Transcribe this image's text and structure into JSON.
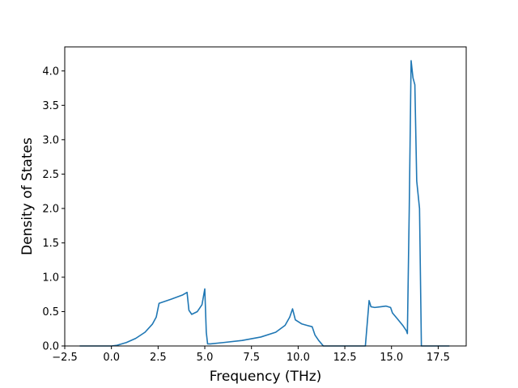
{
  "chart_data": {
    "type": "line",
    "title": "",
    "xlabel": "Frequency (THz)",
    "ylabel": "Density of States",
    "xlim": [
      -2.5,
      19.0
    ],
    "ylim": [
      0.0,
      4.35
    ],
    "xticks": [
      -2.5,
      0.0,
      2.5,
      5.0,
      7.5,
      10.0,
      12.5,
      15.0,
      17.5
    ],
    "xtick_labels": [
      "−2.5",
      "0.0",
      "2.5",
      "5.0",
      "7.5",
      "10.0",
      "12.5",
      "15.0",
      "17.5"
    ],
    "yticks": [
      0.0,
      0.5,
      1.0,
      1.5,
      2.0,
      2.5,
      3.0,
      3.5,
      4.0
    ],
    "ytick_labels": [
      "0.0",
      "0.5",
      "1.0",
      "1.5",
      "2.0",
      "2.5",
      "3.0",
      "3.5",
      "4.0"
    ],
    "grid": false,
    "line_color": "#1f77b4",
    "series": [
      {
        "x": [
          -1.7,
          0.0,
          0.3,
          0.8,
          1.3,
          1.8,
          2.2,
          2.4,
          2.55,
          3.2,
          3.8,
          4.05,
          4.15,
          4.3,
          4.6,
          4.85,
          5.0,
          5.08,
          5.15,
          5.3,
          6.0,
          7.0,
          8.0,
          8.8,
          9.3,
          9.55,
          9.7,
          9.85,
          10.2,
          10.6,
          10.75,
          10.9,
          11.1,
          11.35,
          12.0,
          13.0,
          13.6,
          13.8,
          13.9,
          14.1,
          14.4,
          14.7,
          14.95,
          15.05,
          15.3,
          15.6,
          15.8,
          15.85,
          15.95,
          16.05,
          16.15,
          16.25,
          16.35,
          16.5,
          16.6,
          16.65,
          17.0,
          18.1
        ],
        "y": [
          0.0,
          0.0,
          0.01,
          0.05,
          0.11,
          0.2,
          0.32,
          0.42,
          0.62,
          0.68,
          0.74,
          0.78,
          0.52,
          0.46,
          0.5,
          0.6,
          0.83,
          0.2,
          0.03,
          0.03,
          0.05,
          0.08,
          0.13,
          0.2,
          0.3,
          0.42,
          0.54,
          0.38,
          0.32,
          0.29,
          0.28,
          0.16,
          0.08,
          0.0,
          0.0,
          0.0,
          0.0,
          0.66,
          0.57,
          0.56,
          0.57,
          0.58,
          0.56,
          0.48,
          0.4,
          0.3,
          0.22,
          0.18,
          2.0,
          4.15,
          3.9,
          3.8,
          2.4,
          2.0,
          0.0,
          0.0,
          0.0,
          0.0
        ]
      }
    ]
  }
}
